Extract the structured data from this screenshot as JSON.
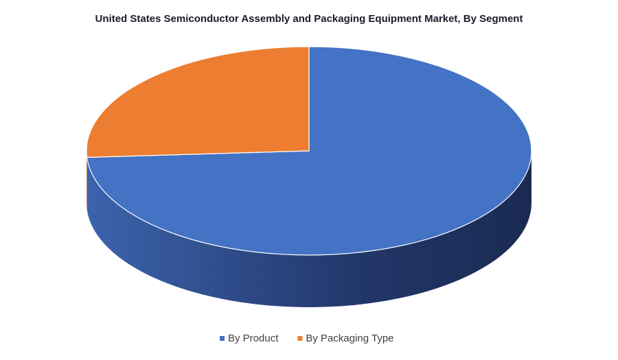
{
  "chart_data": {
    "type": "pie",
    "title": "United States Semiconductor Assembly and Packaging Equipment Market, By Segment",
    "categories": [
      "By Product",
      "By Packaging Type"
    ],
    "values": [
      74,
      26
    ],
    "colors": [
      "#4472c4",
      "#ed7d31"
    ],
    "legend": "bottom"
  }
}
